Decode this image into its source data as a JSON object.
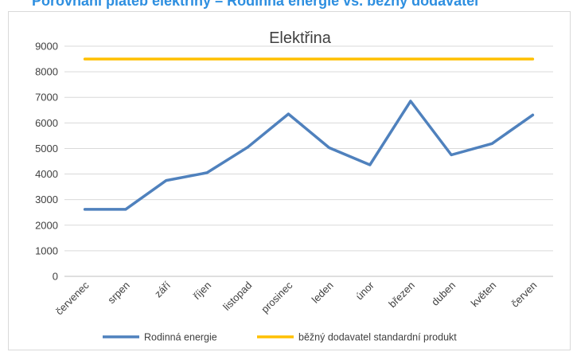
{
  "banner": {
    "text": "Porovnání plateb elektřiny – Rodinná energie vs. běžný dodavatel",
    "color": "#2e8fe0"
  },
  "chart_data": {
    "type": "line",
    "title": "Elektřina",
    "xlabel": "",
    "ylabel": "",
    "categories": [
      "červenec",
      "srpen",
      "září",
      "říjen",
      "listopad",
      "prosinec",
      "leden",
      "únor",
      "březen",
      "duben",
      "květen",
      "červen"
    ],
    "ylim": [
      0,
      9000
    ],
    "yticks": [
      0,
      1000,
      2000,
      3000,
      4000,
      5000,
      6000,
      7000,
      8000,
      9000
    ],
    "grid": "horizontal",
    "legend_position": "bottom",
    "series": [
      {
        "name": "Rodinná energie",
        "color": "#4f81bd",
        "values": [
          2620,
          2620,
          3750,
          4050,
          5050,
          6350,
          5030,
          4360,
          6850,
          4750,
          5190,
          6310
        ]
      },
      {
        "name": "běžný dodavatel standardní produkt",
        "color": "#ffc000",
        "values": [
          8500,
          8500,
          8500,
          8500,
          8500,
          8500,
          8500,
          8500,
          8500,
          8500,
          8500,
          8500
        ]
      }
    ]
  }
}
